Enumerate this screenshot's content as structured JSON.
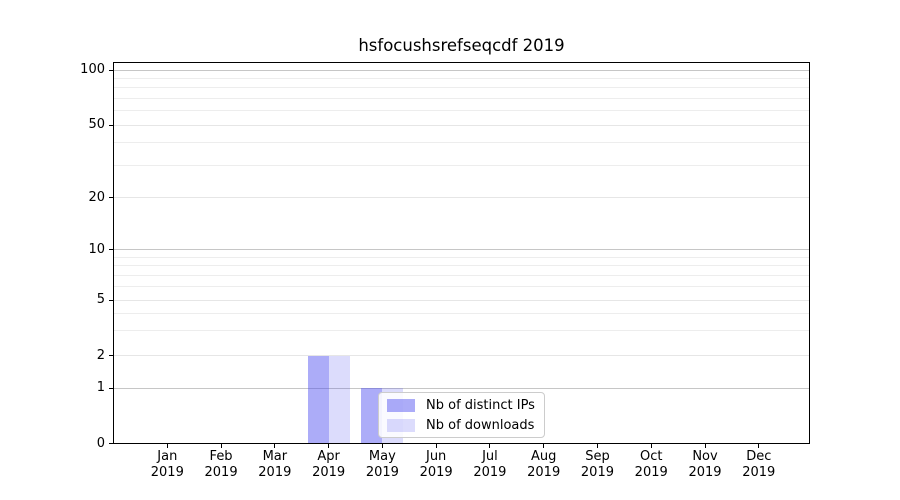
{
  "chart_data": {
    "type": "bar",
    "title": "hsfocushsrefseqcdf 2019",
    "x": {
      "months": [
        "Jan",
        "Feb",
        "Mar",
        "Apr",
        "May",
        "Jun",
        "Jul",
        "Aug",
        "Sep",
        "Oct",
        "Nov",
        "Dec"
      ],
      "year": "2019"
    },
    "y": {
      "ticks": [
        "0",
        "1",
        "2",
        "5",
        "10",
        "20",
        "50",
        "100"
      ],
      "tick_values": [
        0,
        1,
        2,
        5,
        10,
        20,
        50,
        100
      ],
      "major_values": [
        1,
        10,
        100
      ],
      "minor_gridlines": [
        3,
        4,
        6,
        7,
        8,
        9,
        30,
        40,
        60,
        70,
        80,
        90
      ],
      "scale": "symlog",
      "range": [
        0,
        110
      ]
    },
    "series": [
      {
        "name": "Nb of distinct IPs",
        "color": "rgba(70,70,240,0.45)",
        "values": [
          0,
          0,
          0,
          2,
          1,
          0,
          0,
          0,
          0,
          0,
          0,
          0
        ]
      },
      {
        "name": "Nb of downloads",
        "color": "rgba(70,70,240,0.19)",
        "values": [
          0,
          0,
          0,
          2,
          1,
          0,
          0,
          0,
          0,
          0,
          0,
          0
        ]
      }
    ],
    "legend": {
      "position": "lower-center",
      "frame": true
    },
    "grid": true
  }
}
